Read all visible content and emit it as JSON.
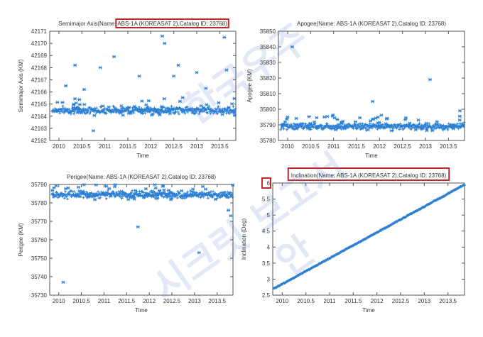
{
  "chart_data": [
    {
      "type": "scatter",
      "title": "Semimajor Axis(Name: ABS-1A (KOREASAT 2),Catalog ID: 23768)",
      "title_prefix": "Semimajor Axis(Name: ",
      "title_boxed": "ABS-1A (KOREASAT 2),Catalog ID: 23768)",
      "xlabel": "Time",
      "ylabel": "Semimajor Axis (KM)",
      "xlim": [
        2009.8,
        2013.85
      ],
      "ylim": [
        42162,
        42171
      ],
      "xticks": [
        "2010",
        "2010.5",
        "2011",
        "2011.5",
        "2012",
        "2012.5",
        "2013",
        "2013.5"
      ],
      "yticks": [
        "42162",
        "42163",
        "42164",
        "42165",
        "42166",
        "42167",
        "42168",
        "42169",
        "42170",
        "42171"
      ],
      "color": "#2b7fd4",
      "series": [
        {
          "band_center": 42164.5,
          "band_spread": 0.25,
          "outliers": [
            [
              2010.15,
              42166.5
            ],
            [
              2010.35,
              42168.2
            ],
            [
              2010.55,
              42166.2
            ],
            [
              2010.75,
              42162.8
            ],
            [
              2010.9,
              42168.0
            ],
            [
              2011.2,
              42168.9
            ],
            [
              2011.75,
              42167.3
            ],
            [
              2012.25,
              42170.6
            ],
            [
              2012.3,
              42170.0
            ],
            [
              2012.5,
              42167.3
            ],
            [
              2012.6,
              42168.2
            ],
            [
              2013.0,
              42167.6
            ],
            [
              2013.2,
              42166.3
            ],
            [
              2013.6,
              42170.5
            ],
            [
              2013.65,
              42167.8
            ]
          ]
        }
      ]
    },
    {
      "type": "scatter",
      "title": "Apogee(Name: ABS-1A (KOREASAT 2),Catalog ID: 23768)",
      "xlabel": "Time",
      "ylabel": "Apogee (KM)",
      "xlim": [
        2009.8,
        2013.85
      ],
      "ylim": [
        35780,
        35850
      ],
      "xticks": [
        "2010",
        "2010.5",
        "2011",
        "2011.5",
        "2012",
        "2012.5",
        "2013",
        "2013.5"
      ],
      "yticks": [
        "35780",
        "35790",
        "35800",
        "35810",
        "35820",
        "35830",
        "35840",
        "35850"
      ],
      "color": "#2b7fd4",
      "series": [
        {
          "band_center": 35789,
          "band_spread": 1.8,
          "outliers": [
            [
              2010.1,
              35840
            ],
            [
              2011.85,
              35805
            ],
            [
              2013.1,
              35819
            ],
            [
              2013.75,
              35799
            ],
            [
              2010.0,
              35795
            ],
            [
              2010.8,
              35795
            ]
          ]
        }
      ]
    },
    {
      "type": "scatter",
      "title": "Perigee(Name: ABS-1A (KOREASAT 2),Catalog ID: 23768)",
      "xlabel": "Time",
      "ylabel": "Perigee (KM)",
      "xlim": [
        2009.8,
        2013.85
      ],
      "ylim": [
        35730,
        35790
      ],
      "xticks": [
        "2010",
        "2010.5",
        "2011",
        "2011.5",
        "2012",
        "2012.5",
        "2013",
        "2013.5"
      ],
      "yticks": [
        "35730",
        "35740",
        "35750",
        "35760",
        "35770",
        "35780",
        "35790"
      ],
      "color": "#2b7fd4",
      "series": [
        {
          "band_center": 35784.5,
          "band_spread": 1.6,
          "outliers": [
            [
              2010.1,
              35737
            ],
            [
              2011.75,
              35767
            ],
            [
              2013.1,
              35753
            ],
            [
              2013.8,
              35773
            ],
            [
              2013.75,
              35776
            ],
            [
              2012.3,
              35789
            ]
          ]
        }
      ]
    },
    {
      "type": "scatter",
      "title": "Inclination(Name: ABS-1A (KOREASAT 2),Catalog ID: 23768)",
      "xlabel": "Time",
      "ylabel": "Inclination (Deg)",
      "xlim": [
        2009.8,
        2013.85
      ],
      "ylim": [
        2.5,
        6
      ],
      "xticks": [
        "2010",
        "2010.5",
        "2011",
        "2011.5",
        "2012",
        "2012.5",
        "2013",
        "2013.5"
      ],
      "yticks": [
        "2.5",
        "3",
        "3.5",
        "4",
        "4.5",
        "5",
        "5.5",
        "6"
      ],
      "boxed_ytick": "6",
      "color": "#2b7fd4",
      "series": [
        {
          "line_start": [
            2009.82,
            2.7
          ],
          "line_end": [
            2013.85,
            5.95
          ]
        }
      ]
    }
  ],
  "watermark": {
    "lines": [
      "시크릿 보고서",
      "안",
      "한국우주"
    ]
  }
}
